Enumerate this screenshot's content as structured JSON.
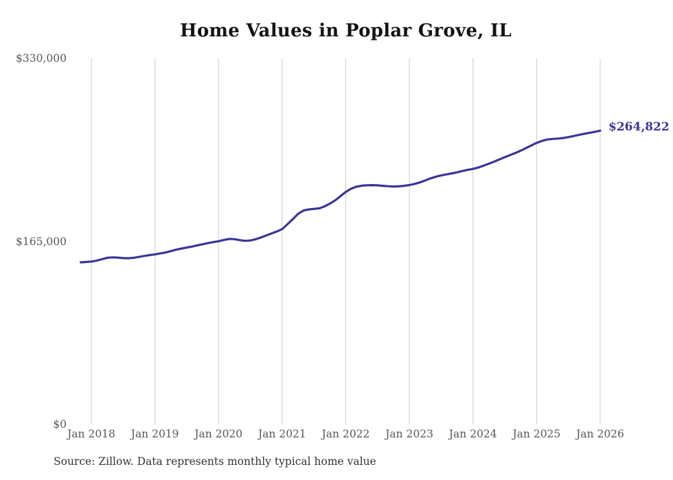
{
  "chart_data": {
    "type": "line",
    "title": "Home Values in Poplar Grove, IL",
    "source_note": "Source: Zillow. Data represents monthly typical home value",
    "end_label": "$264,822",
    "last_value": 264822,
    "series_name": "Typical home value",
    "line_color": "#3b3597",
    "gridline_color": "#cccccc",
    "grid": "vertical-only",
    "legend": "none",
    "x_tick_labels": [
      "Jan 2018",
      "Jan 2019",
      "Jan 2020",
      "Jan 2021",
      "Jan 2022",
      "Jan 2023",
      "Jan 2024",
      "Jan 2025",
      "Jan 2026"
    ],
    "y_tick_labels": [
      "$0",
      "$165,000",
      "$330,000"
    ],
    "y_axis": {
      "min": 0,
      "max": 330000
    },
    "x_axis": {
      "first_tick_month": "2018-01",
      "last_tick_month": "2026-01"
    },
    "x": [
      "2017-11",
      "2017-12",
      "2018-01",
      "2018-02",
      "2018-03",
      "2018-04",
      "2018-05",
      "2018-06",
      "2018-07",
      "2018-08",
      "2018-09",
      "2018-10",
      "2018-11",
      "2018-12",
      "2019-01",
      "2019-02",
      "2019-03",
      "2019-04",
      "2019-05",
      "2019-06",
      "2019-07",
      "2019-08",
      "2019-09",
      "2019-10",
      "2019-11",
      "2019-12",
      "2020-01",
      "2020-02",
      "2020-03",
      "2020-04",
      "2020-05",
      "2020-06",
      "2020-07",
      "2020-08",
      "2020-09",
      "2020-10",
      "2020-11",
      "2020-12",
      "2021-01",
      "2021-02",
      "2021-03",
      "2021-04",
      "2021-05",
      "2021-06",
      "2021-07",
      "2021-08",
      "2021-09",
      "2021-10",
      "2021-11",
      "2021-12",
      "2022-01",
      "2022-02",
      "2022-03",
      "2022-04",
      "2022-05",
      "2022-06",
      "2022-07",
      "2022-08",
      "2022-09",
      "2022-10",
      "2022-11",
      "2022-12",
      "2023-01",
      "2023-02",
      "2023-03",
      "2023-04",
      "2023-05",
      "2023-06",
      "2023-07",
      "2023-08",
      "2023-09",
      "2023-10",
      "2023-11",
      "2023-12",
      "2024-01",
      "2024-02",
      "2024-03",
      "2024-04",
      "2024-05",
      "2024-06",
      "2024-07",
      "2024-08",
      "2024-09",
      "2024-10",
      "2024-11",
      "2024-12",
      "2025-01",
      "2025-02",
      "2025-03",
      "2025-04",
      "2025-05",
      "2025-06",
      "2025-07",
      "2025-08",
      "2025-09",
      "2025-10",
      "2025-11",
      "2025-12",
      "2026-01"
    ],
    "values": [
      146100,
      146400,
      146800,
      147600,
      148900,
      150200,
      150600,
      150400,
      149900,
      149800,
      150200,
      151000,
      151900,
      152600,
      153300,
      154100,
      155000,
      156200,
      157500,
      158500,
      159400,
      160300,
      161400,
      162400,
      163400,
      164300,
      165100,
      166300,
      167200,
      167000,
      166100,
      165500,
      165800,
      166900,
      168500,
      170300,
      172100,
      174000,
      176000,
      180500,
      185000,
      189800,
      192800,
      193800,
      194300,
      194800,
      196500,
      199000,
      202000,
      205800,
      209600,
      212400,
      214300,
      215200,
      215600,
      215700,
      215500,
      215100,
      214700,
      214500,
      214600,
      215100,
      215800,
      216800,
      218200,
      220000,
      221800,
      223300,
      224500,
      225400,
      226300,
      227300,
      228400,
      229500,
      230400,
      231600,
      233200,
      235000,
      236900,
      238900,
      240900,
      242800,
      244700,
      246800,
      249100,
      251500,
      253800,
      255600,
      256800,
      257400,
      257700,
      258200,
      259000,
      260000,
      261000,
      262000,
      262900,
      263800,
      264822
    ]
  }
}
